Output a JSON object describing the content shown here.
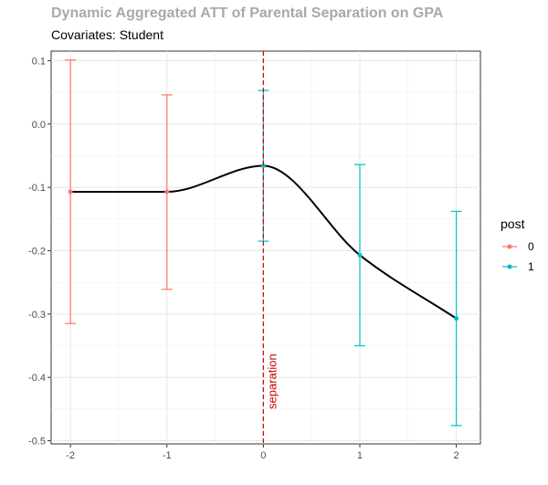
{
  "chart_data": {
    "type": "line",
    "title": "Dynamic Aggregated ATT of Parental Separation on GPA",
    "subtitle": "Covariates: Student",
    "x": [
      -2,
      -1,
      0,
      1,
      2
    ],
    "estimates": [
      -0.107,
      -0.107,
      -0.066,
      -0.207,
      -0.307
    ],
    "ci_lower": [
      -0.315,
      -0.261,
      -0.185,
      -0.35,
      -0.476
    ],
    "ci_upper": [
      0.101,
      0.046,
      0.053,
      -0.064,
      -0.138
    ],
    "post": [
      0,
      0,
      1,
      1,
      1
    ],
    "xlim": [
      -2.2,
      2.25
    ],
    "ylim": [
      -0.505,
      0.115
    ],
    "x_ticks": [
      -2,
      -1,
      0,
      1,
      2
    ],
    "x_tick_labels": [
      "-2",
      "-1",
      "0",
      "1",
      "2"
    ],
    "y_ticks": [
      0.1,
      0.0,
      -0.1,
      -0.2,
      -0.3,
      -0.4,
      -0.5
    ],
    "y_tick_labels": [
      "0.1",
      "0.0",
      "-0.1",
      "-0.2",
      "-0.3",
      "-0.4",
      "-0.5"
    ],
    "grid": true,
    "vline": {
      "x": 0,
      "label": "separation",
      "color": "#cc0000"
    },
    "legend": {
      "title": "post",
      "position": "right",
      "entries": [
        {
          "label": "0",
          "color": "#f8766d"
        },
        {
          "label": "1",
          "color": "#00bfc4"
        }
      ]
    },
    "colors": {
      "post0": "#f8766d",
      "post1": "#00bfc4",
      "smooth": "#000000"
    }
  }
}
